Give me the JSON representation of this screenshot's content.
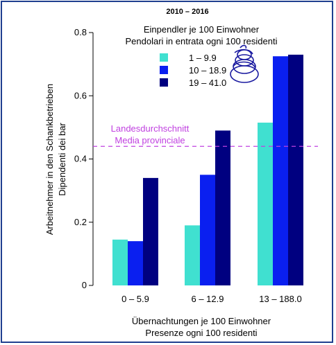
{
  "chart_data": {
    "type": "bar",
    "title": "2010 – 2016",
    "xlabel": [
      "Übernachtungen je 100 Einwohner",
      "Presenze ogni 100 residenti"
    ],
    "ylabel": [
      "Arbeitnehmer in den Schankbetrieben",
      "Dipendenti dei bar"
    ],
    "categories": [
      "0 –  5.9",
      "6 – 12.9",
      "13 – 188.0"
    ],
    "ylim": [
      0,
      0.8
    ],
    "yticks": [
      0,
      0.2,
      0.4,
      0.6,
      0.8
    ],
    "ytick_labels": [
      "0",
      "0.2",
      "0.4",
      "0.6",
      "0.8"
    ],
    "legend_title": [
      "Einpendler je 100 Einwohner",
      "Pendolari in entrata ogni 100 residenti"
    ],
    "legend_position": "top-right",
    "series": [
      {
        "name": "1 –  9.9",
        "color": "#40e0d0",
        "values": [
          0.145,
          0.19,
          0.515
        ]
      },
      {
        "name": "10 – 18.9",
        "color": "#0a1ff0",
        "values": [
          0.14,
          0.35,
          0.725
        ]
      },
      {
        "name": "19 – 41.0",
        "color": "#000080",
        "values": [
          0.34,
          0.49,
          0.73
        ]
      }
    ],
    "reference_line": {
      "value": 0.44,
      "color": "#c040e0",
      "label": [
        "Landesdurchschnitt",
        "Media provinciale"
      ]
    },
    "grid": false
  },
  "logo_icon": "coiled-spring-logo"
}
